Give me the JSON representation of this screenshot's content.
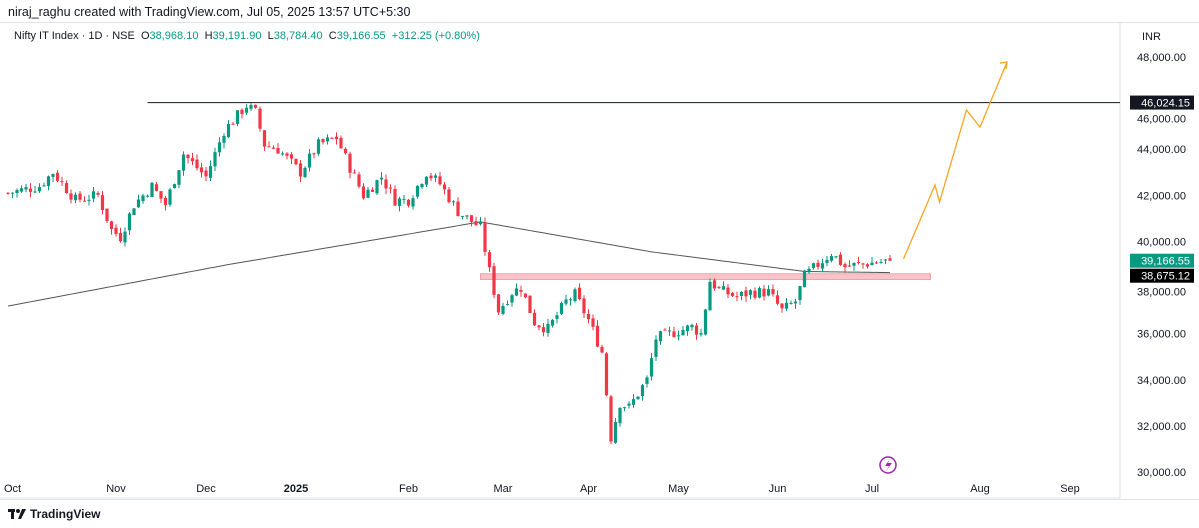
{
  "header": {
    "credit": "niraj_raghu created with TradingView.com, Jul 05, 2025 13:57 UTC+5:30"
  },
  "legend": {
    "symbol": "Nifty IT Index · 1D · NSE",
    "o_label": "O",
    "o": "38,968.10",
    "h_label": "H",
    "h": "39,191.90",
    "l_label": "L",
    "l": "38,784.40",
    "c_label": "C",
    "c": "39,166.55",
    "change": "+312.25 (+0.80%)"
  },
  "currency": "INR",
  "brand": "TradingView",
  "colors": {
    "up": "#089981",
    "down": "#f23645",
    "ma": "#555555",
    "projection": "#f5a623",
    "zone": "#f7c5c9",
    "last": "#089981"
  },
  "chart_data": {
    "type": "candlestick",
    "title": "Nifty IT Index · 1D · NSE",
    "ylim": [
      30000,
      48500
    ],
    "y_ticks": [
      30000,
      32000,
      34000,
      36000,
      38000,
      40000,
      42000,
      44000,
      46000,
      48000
    ],
    "y_tick_labels": [
      "30,000.00",
      "32,000.00",
      "34,000.00",
      "36,000.00",
      "38,000.00",
      "40,000.00",
      "42,000.00",
      "44,000.00",
      "46,000.00",
      "48,000.00"
    ],
    "x_ticks": [
      {
        "bar": 1,
        "label": "Oct"
      },
      {
        "bar": 24,
        "label": "Nov"
      },
      {
        "bar": 44,
        "label": "Dec"
      },
      {
        "bar": 64,
        "label": "2025"
      },
      {
        "bar": 89,
        "label": "Feb"
      },
      {
        "bar": 110,
        "label": "Mar"
      },
      {
        "bar": 129,
        "label": "Apr"
      },
      {
        "bar": 149,
        "label": "May"
      },
      {
        "bar": 171,
        "label": "Jun"
      },
      {
        "bar": 192,
        "label": "Jul"
      },
      {
        "bar": 216,
        "label": "Aug"
      },
      {
        "bar": 236,
        "label": "Sep"
      }
    ],
    "close_waypoints": [
      [
        0,
        42100
      ],
      [
        7,
        42400
      ],
      [
        10,
        43000
      ],
      [
        15,
        41800
      ],
      [
        20,
        42000
      ],
      [
        23,
        40500
      ],
      [
        25,
        40200
      ],
      [
        28,
        41600
      ],
      [
        32,
        42400
      ],
      [
        35,
        41600
      ],
      [
        39,
        43800
      ],
      [
        44,
        42800
      ],
      [
        48,
        44800
      ],
      [
        53,
        45900
      ],
      [
        55,
        45600
      ],
      [
        57,
        44200
      ],
      [
        60,
        44000
      ],
      [
        65,
        43000
      ],
      [
        69,
        44200
      ],
      [
        73,
        44500
      ],
      [
        76,
        43200
      ],
      [
        79,
        42000
      ],
      [
        83,
        42800
      ],
      [
        86,
        41800
      ],
      [
        89,
        41800
      ],
      [
        93,
        43000
      ],
      [
        96,
        42500
      ],
      [
        100,
        41300
      ],
      [
        105,
        40600
      ],
      [
        107,
        38700
      ],
      [
        109,
        37000
      ],
      [
        112,
        37800
      ],
      [
        114,
        38000
      ],
      [
        117,
        36500
      ],
      [
        120,
        36200
      ],
      [
        124,
        37400
      ],
      [
        126,
        37700
      ],
      [
        129,
        36600
      ],
      [
        132,
        35200
      ],
      [
        133,
        33400
      ],
      [
        134,
        31500
      ],
      [
        136,
        33000
      ],
      [
        138,
        32800
      ],
      [
        142,
        34000
      ],
      [
        144,
        35800
      ],
      [
        147,
        36000
      ],
      [
        152,
        36300
      ],
      [
        154,
        36000
      ],
      [
        156,
        38300
      ],
      [
        158,
        37900
      ],
      [
        162,
        37600
      ],
      [
        165,
        37800
      ],
      [
        169,
        37800
      ],
      [
        172,
        37000
      ],
      [
        175,
        37400
      ],
      [
        177,
        38500
      ],
      [
        180,
        39000
      ],
      [
        183,
        39500
      ],
      [
        186,
        38900
      ],
      [
        189,
        39000
      ],
      [
        193,
        39100
      ],
      [
        196,
        39166.55
      ]
    ],
    "moving_average": [
      [
        0,
        37200
      ],
      [
        49,
        39000
      ],
      [
        105,
        40850
      ],
      [
        143,
        39550
      ],
      [
        177,
        38700
      ],
      [
        196,
        38650
      ]
    ],
    "resistance_line": {
      "value": 46024.15,
      "label": "46,024.15",
      "from_bar": 31
    },
    "support_zone": {
      "low": 38350,
      "high": 38600,
      "from_bar": 105,
      "to_bar": 205
    },
    "projection": [
      [
        199,
        39240
      ],
      [
        206,
        42450
      ],
      [
        207,
        41710
      ],
      [
        213,
        45700
      ],
      [
        216,
        44960
      ],
      [
        222,
        47780
      ]
    ],
    "last_price": {
      "value": 39166.55,
      "label": "39,166.55"
    },
    "ma_value": {
      "value": 38675.12,
      "label": "38,675.12"
    }
  }
}
